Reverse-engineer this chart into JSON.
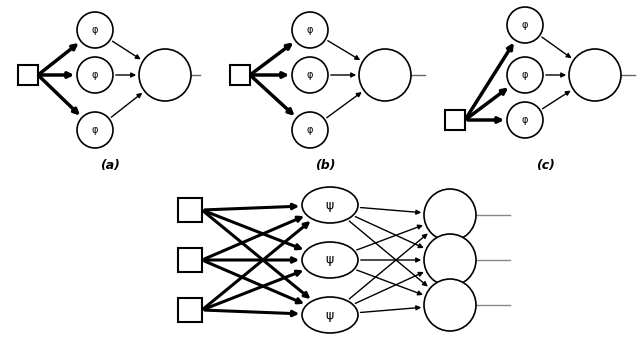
{
  "fig_width": 6.4,
  "fig_height": 3.4,
  "dpi": 100,
  "bg_color": "#ffffff",
  "psi_symbol": "ψ",
  "phi_symbol": "φ",
  "label_a": "(a)",
  "label_b": "(b)",
  "label_c": "(c)"
}
